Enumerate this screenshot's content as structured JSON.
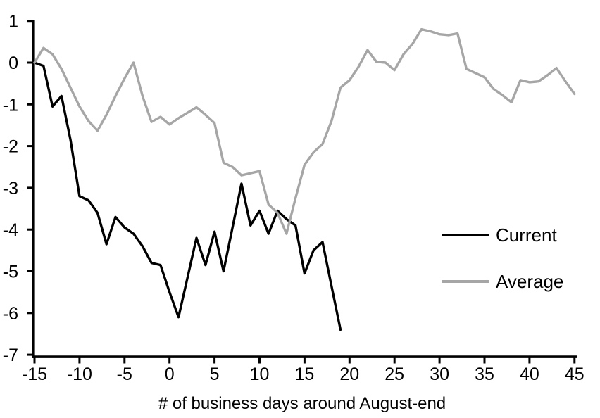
{
  "chart_data": {
    "type": "line",
    "title": "",
    "xlabel": "# of business days around August-end",
    "ylabel": "",
    "xlim": [
      -15,
      45
    ],
    "ylim": [
      -7,
      1
    ],
    "grid": false,
    "legend_position": "middle-right",
    "x_ticks": [
      -15,
      -10,
      -5,
      0,
      5,
      10,
      15,
      20,
      25,
      30,
      35,
      40,
      45
    ],
    "y_ticks": [
      1,
      0,
      -1,
      -2,
      -3,
      -4,
      -5,
      -6,
      -7
    ],
    "x": [
      -15,
      -14,
      -13,
      -12,
      -11,
      -10,
      -9,
      -8,
      -7,
      -6,
      -5,
      -4,
      -3,
      -2,
      -1,
      0,
      1,
      2,
      3,
      4,
      5,
      6,
      7,
      8,
      9,
      10,
      11,
      12,
      13,
      14,
      15,
      16,
      17,
      18,
      19,
      20,
      21,
      22,
      23,
      24,
      25,
      26,
      27,
      28,
      29,
      30,
      31,
      32,
      33,
      34,
      35,
      36,
      37,
      38,
      39,
      40,
      41,
      42,
      43,
      44,
      45
    ],
    "series": [
      {
        "name": "Current",
        "color": "#000000",
        "values": [
          0,
          -0.08,
          -1.05,
          -0.8,
          -1.85,
          -3.2,
          -3.3,
          -3.6,
          -4.35,
          -3.7,
          -3.95,
          -4.1,
          -4.4,
          -4.8,
          -4.85,
          -5.5,
          -6.1,
          -5.15,
          -4.2,
          -4.85,
          -4.05,
          -5.0,
          -3.95,
          -2.9,
          -3.9,
          -3.55,
          -4.1,
          -3.55,
          -3.75,
          -3.9,
          -5.05,
          -4.5,
          -4.3,
          -5.35,
          -6.4,
          null,
          null,
          null,
          null,
          null,
          null,
          null,
          null,
          null,
          null,
          null,
          null,
          null,
          null,
          null,
          null,
          null,
          null,
          null,
          null,
          null,
          null,
          null,
          null,
          null,
          null
        ]
      },
      {
        "name": "Average",
        "color": "#a6a6a6",
        "values": [
          0,
          0.35,
          0.2,
          -0.15,
          -0.6,
          -1.05,
          -1.4,
          -1.63,
          -1.25,
          -0.8,
          -0.38,
          0,
          -0.8,
          -1.42,
          -1.3,
          -1.48,
          -1.33,
          -1.2,
          -1.07,
          -1.25,
          -1.45,
          -2.4,
          -2.5,
          -2.7,
          -2.65,
          -2.6,
          -3.4,
          -3.6,
          -4.1,
          -3.25,
          -2.45,
          -2.15,
          -1.95,
          -1.4,
          -0.6,
          -0.42,
          -0.1,
          0.3,
          0.02,
          0,
          -0.18,
          0.2,
          0.45,
          0.8,
          0.75,
          0.68,
          0.66,
          0.7,
          -0.15,
          -0.25,
          -0.35,
          -0.63,
          -0.78,
          -0.95,
          -0.42,
          -0.47,
          -0.45,
          -0.3,
          -0.13,
          -0.45,
          -0.75
        ]
      }
    ]
  },
  "legend": {
    "items": [
      {
        "label": "Current",
        "color": "#000000"
      },
      {
        "label": "Average",
        "color": "#a6a6a6"
      }
    ]
  },
  "axes": {
    "x_title": "# of business days around August-end",
    "axis_color": "#000000"
  }
}
